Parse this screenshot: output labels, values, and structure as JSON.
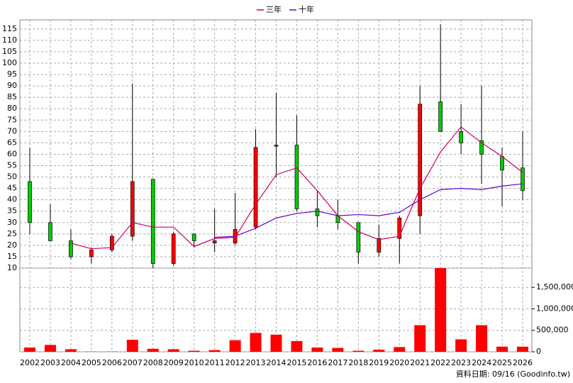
{
  "chart_data": {
    "type": "candlestick",
    "categories": [
      "2002",
      "2003",
      "2004",
      "2005",
      "2006",
      "2007",
      "2008",
      "2009",
      "2010",
      "2011",
      "2012",
      "2013",
      "2014",
      "2015",
      "2016",
      "2017",
      "2018",
      "2019",
      "2020",
      "2021",
      "2022",
      "2023",
      "2024",
      "2025",
      "2026"
    ],
    "open": [
      48,
      30,
      22,
      15,
      18,
      24,
      49,
      12,
      25,
      21,
      21,
      28,
      63.5,
      64,
      36,
      33,
      30,
      17,
      23,
      33,
      83,
      70,
      66,
      59,
      54
    ],
    "high": [
      63,
      38,
      27,
      19,
      25,
      91,
      49,
      26,
      25,
      36,
      43,
      71,
      87,
      77,
      44,
      40,
      30,
      29,
      33,
      90,
      117,
      82,
      90,
      63,
      70
    ],
    "low": [
      25,
      22,
      14,
      12,
      17,
      22,
      10,
      11,
      19,
      17,
      20,
      27,
      50,
      35,
      28,
      27,
      12,
      15,
      12,
      25,
      70,
      60,
      47,
      37,
      40
    ],
    "close": [
      30,
      22,
      15,
      18,
      24,
      48,
      12,
      25,
      22,
      22,
      27,
      63,
      64,
      36,
      33,
      30,
      17,
      23,
      32,
      82,
      70,
      65,
      60,
      53,
      44
    ],
    "up_color": "#ff0000",
    "down_color": "#00cc00",
    "series": [
      {
        "name": "三年",
        "color": "#cc0066",
        "values": [
          null,
          null,
          21,
          18.5,
          19,
          30,
          28,
          28,
          19.5,
          23,
          23.5,
          38,
          51,
          54,
          44,
          33,
          26,
          22.5,
          24,
          45,
          61,
          72,
          65,
          59,
          52
        ]
      },
      {
        "name": "十年",
        "color": "#6600cc",
        "values": [
          null,
          null,
          null,
          null,
          null,
          null,
          null,
          null,
          null,
          23.5,
          24,
          27.5,
          32,
          34,
          35,
          33,
          33.5,
          33,
          34.5,
          40,
          44.5,
          45,
          44.5,
          46,
          47
        ]
      }
    ],
    "ylim": [
      10,
      119
    ],
    "yticks": [
      10,
      15,
      20,
      25,
      30,
      35,
      40,
      45,
      50,
      55,
      60,
      65,
      70,
      75,
      80,
      85,
      90,
      95,
      100,
      105,
      110,
      115
    ],
    "grid": true,
    "legend": "top",
    "volume": {
      "type": "bar",
      "color": "#ff0000",
      "values": [
        100000,
        160000,
        60000,
        5000,
        5000,
        280000,
        70000,
        60000,
        25000,
        40000,
        270000,
        440000,
        400000,
        250000,
        100000,
        90000,
        25000,
        50000,
        110000,
        620000,
        1950000,
        290000,
        620000,
        120000,
        120000
      ],
      "ylim": [
        0,
        1950000
      ],
      "yticks": [
        0,
        {
          "value": 500000,
          "label": "500,000"
        },
        {
          "value": 1000000,
          "label": "1,000,000"
        },
        {
          "value": 1500000,
          "label": "1,500,000"
        }
      ]
    },
    "footer": "資料日期: 09/16 (Goodinfo.tw)"
  }
}
